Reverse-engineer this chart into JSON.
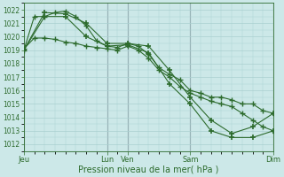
{
  "bg_color": "#cce8e8",
  "grid_color": "#aad0d0",
  "line_color": "#2d6b2d",
  "marker_color": "#2d6b2d",
  "xlabel": "Pression niveau de la mer( hPa )",
  "ylim": [
    1011.5,
    1022.5
  ],
  "yticks": [
    1012,
    1013,
    1014,
    1015,
    1016,
    1017,
    1018,
    1019,
    1020,
    1021,
    1022
  ],
  "xlim": [
    0,
    288
  ],
  "day_positions": [
    0,
    96,
    120,
    192,
    288
  ],
  "day_labels": [
    "Jeu",
    "Lun",
    "Ven",
    "Sam",
    "Dim"
  ],
  "vline_color": "#555566",
  "series1": {
    "x": [
      0,
      12,
      24,
      36,
      48,
      60,
      72,
      84,
      96,
      108,
      120,
      132,
      144,
      156,
      168,
      180,
      192,
      204,
      216,
      228,
      240,
      252,
      264,
      276,
      288
    ],
    "y": [
      1019.0,
      1021.5,
      1021.5,
      1021.8,
      1021.9,
      1021.5,
      1020.8,
      1019.7,
      1019.3,
      1019.2,
      1019.5,
      1019.3,
      1018.7,
      1017.7,
      1017.2,
      1016.8,
      1016.0,
      1015.8,
      1015.5,
      1015.5,
      1015.3,
      1015.0,
      1015.0,
      1014.5,
      1014.3
    ]
  },
  "series2": {
    "x": [
      0,
      12,
      24,
      36,
      48,
      60,
      72,
      84,
      96,
      108,
      120,
      132,
      144,
      156,
      168,
      180,
      192,
      204,
      216,
      228,
      240,
      252,
      264,
      276,
      288
    ],
    "y": [
      1019.1,
      1019.9,
      1019.9,
      1019.8,
      1019.6,
      1019.5,
      1019.3,
      1019.2,
      1019.1,
      1019.0,
      1019.3,
      1019.0,
      1018.4,
      1017.5,
      1017.0,
      1016.3,
      1015.8,
      1015.5,
      1015.2,
      1015.0,
      1014.8,
      1014.3,
      1013.8,
      1013.3,
      1013.0
    ]
  },
  "series3": {
    "x": [
      0,
      24,
      48,
      72,
      96,
      120,
      144,
      168,
      192,
      216,
      240,
      264,
      288
    ],
    "y": [
      1019.0,
      1021.8,
      1021.7,
      1021.0,
      1019.5,
      1019.5,
      1019.3,
      1017.5,
      1015.5,
      1013.8,
      1012.8,
      1013.3,
      1014.3
    ]
  },
  "series4": {
    "x": [
      0,
      24,
      48,
      72,
      96,
      120,
      144,
      168,
      192,
      216,
      240,
      264,
      288
    ],
    "y": [
      1019.0,
      1021.5,
      1021.5,
      1020.0,
      1019.3,
      1019.4,
      1018.8,
      1016.5,
      1015.0,
      1013.0,
      1012.5,
      1012.5,
      1013.0
    ]
  }
}
